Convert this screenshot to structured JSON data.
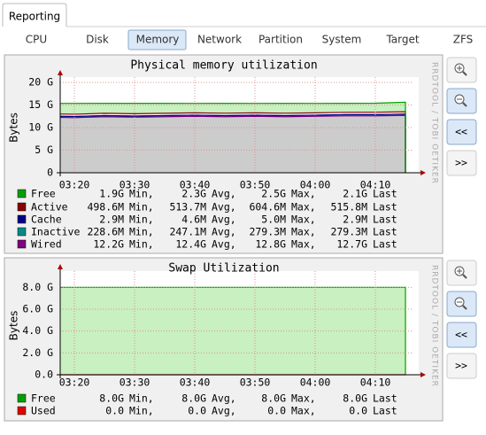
{
  "tabs": {
    "main": "Reporting",
    "sub": [
      "CPU",
      "Disk",
      "Memory",
      "Network",
      "Partition",
      "System",
      "Target",
      "ZFS"
    ],
    "selected": "Memory"
  },
  "watermark": "RRDTOOL / TOBI OETIKER",
  "buttons": [
    "<<",
    ">>"
  ],
  "chart_data": [
    {
      "type": "area",
      "stacked": true,
      "title": "Physical memory utilization",
      "y_label": "Bytes",
      "categories": [
        null,
        "03:20",
        null,
        "03:30",
        null,
        "03:40",
        null,
        "03:50",
        null,
        "04:00",
        null,
        "04:10",
        null
      ],
      "ylim": [
        0,
        20
      ],
      "yticks": [
        0,
        {
          "value": 5,
          "label": "5 G"
        },
        {
          "value": 10,
          "label": "10 G"
        },
        {
          "value": 15,
          "label": "15 G"
        },
        {
          "value": 20,
          "label": "20 G"
        }
      ],
      "grid": true,
      "stat_labels": [
        "Min,",
        "Avg,",
        "Max,",
        "Last"
      ],
      "series": [
        {
          "name": "Free",
          "color": "#00a000",
          "fill": "#c8f0c0",
          "values": [
            2.3,
            2.4,
            2.2,
            2.3,
            2.2,
            2.1,
            2.2,
            2.1,
            2.2,
            2.1,
            2.0,
            2.0,
            2.1
          ],
          "stats": [
            "1.9G",
            "2.3G",
            "2.5G",
            "2.1G"
          ]
        },
        {
          "name": "Active",
          "color": "#8b0000",
          "values": [
            0.51,
            0.5,
            0.52,
            0.51,
            0.52,
            0.5,
            0.52,
            0.51,
            0.52,
            0.5,
            0.51,
            0.52,
            0.52
          ],
          "stats": [
            "498.6M",
            "513.7M",
            "604.6M",
            "515.8M"
          ]
        },
        {
          "name": "Cache",
          "color": "#00008b",
          "values": [
            0.003,
            0.005,
            0.004,
            0.005,
            0.004,
            0.005,
            0.004,
            0.005,
            0.004,
            0.005,
            0.004,
            0.005,
            0.003
          ],
          "stats": [
            "2.9M",
            "4.6M",
            "5.0M",
            "2.9M"
          ]
        },
        {
          "name": "Inactive",
          "color": "#008b8b",
          "values": [
            0.24,
            0.25,
            0.24,
            0.25,
            0.24,
            0.25,
            0.25,
            0.24,
            0.25,
            0.25,
            0.26,
            0.27,
            0.28
          ],
          "stats": [
            "228.6M",
            "247.1M",
            "279.3M",
            "279.3M"
          ]
        },
        {
          "name": "Wired",
          "color": "#800080",
          "fill": "#cccccc",
          "values": [
            12.3,
            12.2,
            12.4,
            12.3,
            12.4,
            12.5,
            12.4,
            12.5,
            12.4,
            12.5,
            12.6,
            12.6,
            12.7
          ],
          "stats": [
            "12.2G",
            "12.4G",
            "12.8G",
            "12.7G"
          ]
        }
      ]
    },
    {
      "type": "area",
      "stacked": true,
      "title": "Swap Utilization",
      "y_label": "Bytes",
      "categories": [
        null,
        "03:20",
        null,
        "03:30",
        null,
        "03:40",
        null,
        "03:50",
        null,
        "04:00",
        null,
        "04:10",
        null
      ],
      "ylim": [
        0,
        9
      ],
      "yticks": [
        {
          "value": 0,
          "label": "0.0"
        },
        {
          "value": 2,
          "label": "2.0 G"
        },
        {
          "value": 4,
          "label": "4.0 G"
        },
        {
          "value": 6,
          "label": "6.0 G"
        },
        {
          "value": 8,
          "label": "8.0 G"
        }
      ],
      "grid": true,
      "stat_labels": [
        "Min,",
        "Avg,",
        "Max,",
        "Last"
      ],
      "series": [
        {
          "name": "Free",
          "color": "#00a000",
          "fill": "#c8f0c0",
          "values": [
            8,
            8,
            8,
            8,
            8,
            8,
            8,
            8,
            8,
            8,
            8,
            8,
            8
          ],
          "stats": [
            "8.0G",
            "8.0G",
            "8.0G",
            "8.0G"
          ]
        },
        {
          "name": "Used",
          "color": "#e00000",
          "values": [
            0,
            0,
            0,
            0,
            0,
            0,
            0,
            0,
            0,
            0,
            0,
            0,
            0
          ],
          "stats": [
            "0.0",
            "0.0",
            "0.0",
            "0.0"
          ]
        }
      ]
    }
  ]
}
